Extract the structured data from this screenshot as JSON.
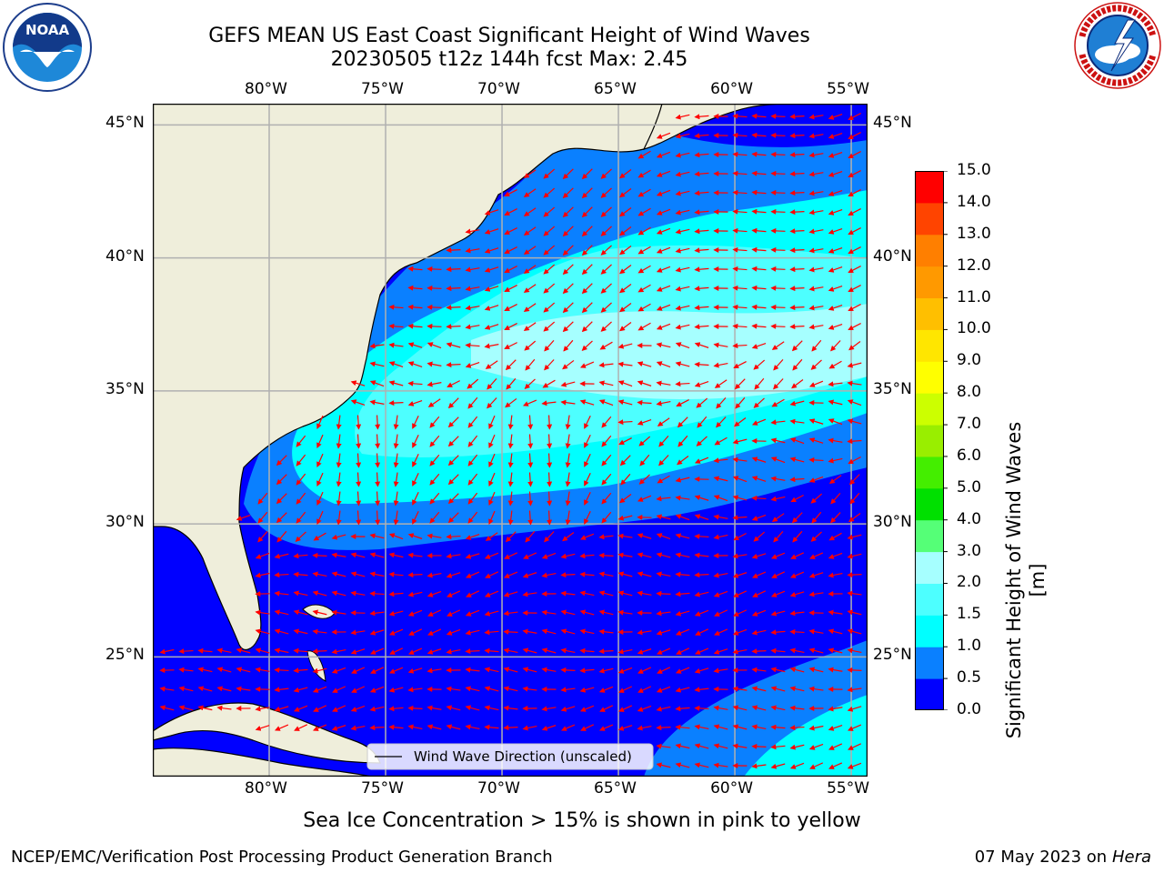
{
  "header": {
    "title_line1": "GEFS MEAN US East Coast Significant Height of Wind Waves",
    "title_line2": "20230505 t12z 144h fcst   Max: 2.45"
  },
  "logos": {
    "left": {
      "icon": "noaa-logo",
      "text": "NOAA",
      "ring_text": "NATIONAL OCEANIC AND ATMOSPHERIC ADMINISTRATION · U.S. DEPARTMENT OF COMMERCE"
    },
    "right": {
      "icon": "nws-logo",
      "ring_text": "NATIONAL WEATHER SERVICE"
    }
  },
  "map": {
    "lon_labels": [
      "80°W",
      "75°W",
      "70°W",
      "65°W",
      "60°W",
      "55°W"
    ],
    "lat_labels": [
      "45°N",
      "40°N",
      "35°N",
      "30°N",
      "25°N"
    ],
    "extent": {
      "lon": [
        -85,
        -54.3
      ],
      "lat": [
        20.5,
        45.8
      ]
    },
    "legend_label": "Wind Wave Direction (unscaled)",
    "colors": {
      "land": "#efeedb",
      "grid": "#b0b0b0",
      "arrow": "#ff0000",
      "coast": "#000000"
    }
  },
  "colorbar": {
    "title": "Significant Height of Wind Waves [m]",
    "ticks": [
      "0.0",
      "0.5",
      "1.0",
      "1.5",
      "2.0",
      "3.0",
      "4.0",
      "5.0",
      "6.0",
      "7.0",
      "8.0",
      "9.0",
      "10.0",
      "11.0",
      "12.0",
      "13.0",
      "14.0",
      "15.0"
    ],
    "colors": [
      "#0000ff",
      "#0a80ff",
      "#00ffff",
      "#4dffff",
      "#a6ffff",
      "#55ff77",
      "#00e000",
      "#44ee00",
      "#99ee00",
      "#ccff00",
      "#ffff00",
      "#ffe600",
      "#ffbf00",
      "#ff9900",
      "#ff7f00",
      "#ff4400",
      "#ff0000"
    ]
  },
  "footer": {
    "note": "Sea Ice Concentration > 15% is shown in pink to yellow",
    "branch": "NCEP/EMC/Verification Post Processing Product Generation Branch",
    "date": "07 May 2023 on",
    "machine": "Hera"
  }
}
